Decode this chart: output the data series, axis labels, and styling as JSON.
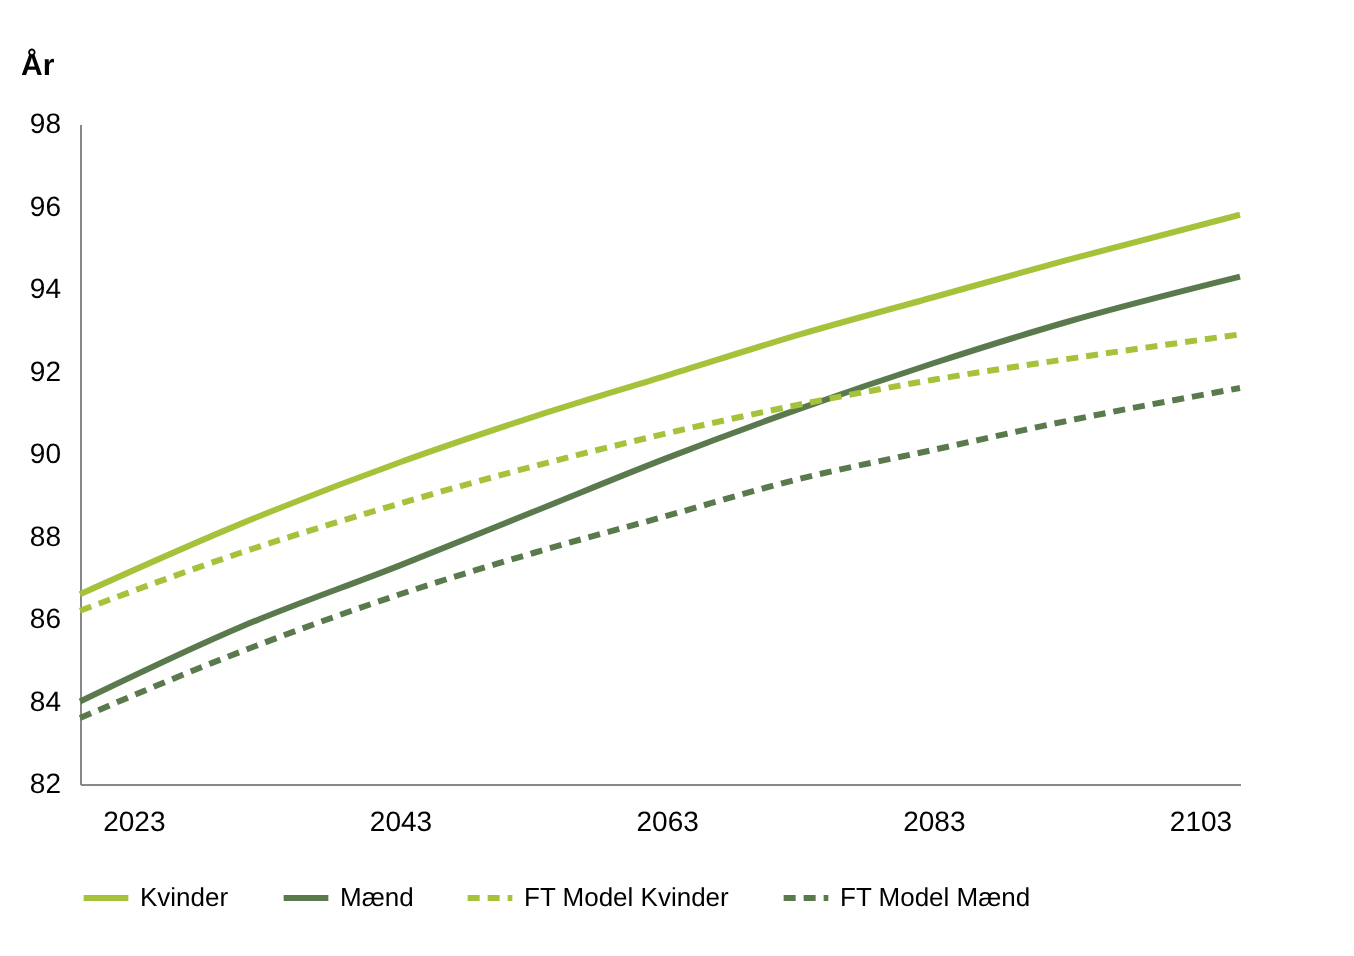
{
  "chart_data": {
    "type": "line",
    "ylabel": "År",
    "x": [
      2019,
      2031,
      2043,
      2053,
      2063,
      2073,
      2083,
      2093,
      2106
    ],
    "xlim": [
      2019,
      2106
    ],
    "xticks": [
      2023,
      2043,
      2063,
      2083,
      2103
    ],
    "ylim": [
      82,
      98
    ],
    "yticks": [
      82,
      84,
      86,
      88,
      90,
      92,
      94,
      96,
      98
    ],
    "grid": false,
    "legend": "bottom",
    "marker": "none",
    "series": [
      {
        "name": "Kvinder",
        "color": "#a5c23a",
        "line_style": "solid",
        "values": [
          86.6,
          88.3,
          89.8,
          90.9,
          91.9,
          92.9,
          93.8,
          94.7,
          95.8
        ]
      },
      {
        "name": "Mænd",
        "color": "#5a7a4e",
        "line_style": "solid",
        "values": [
          84.0,
          85.8,
          87.3,
          88.6,
          89.9,
          91.1,
          92.2,
          93.2,
          94.3
        ]
      },
      {
        "name": "FT Model Kvinder",
        "color": "#a5c23a",
        "line_style": "dashed",
        "values": [
          86.2,
          87.6,
          88.8,
          89.7,
          90.5,
          91.2,
          91.8,
          92.3,
          92.9
        ]
      },
      {
        "name": "FT Model Mænd",
        "color": "#5a7a4e",
        "line_style": "dashed",
        "values": [
          83.6,
          85.2,
          86.6,
          87.6,
          88.5,
          89.4,
          90.1,
          90.8,
          91.6
        ]
      }
    ]
  }
}
